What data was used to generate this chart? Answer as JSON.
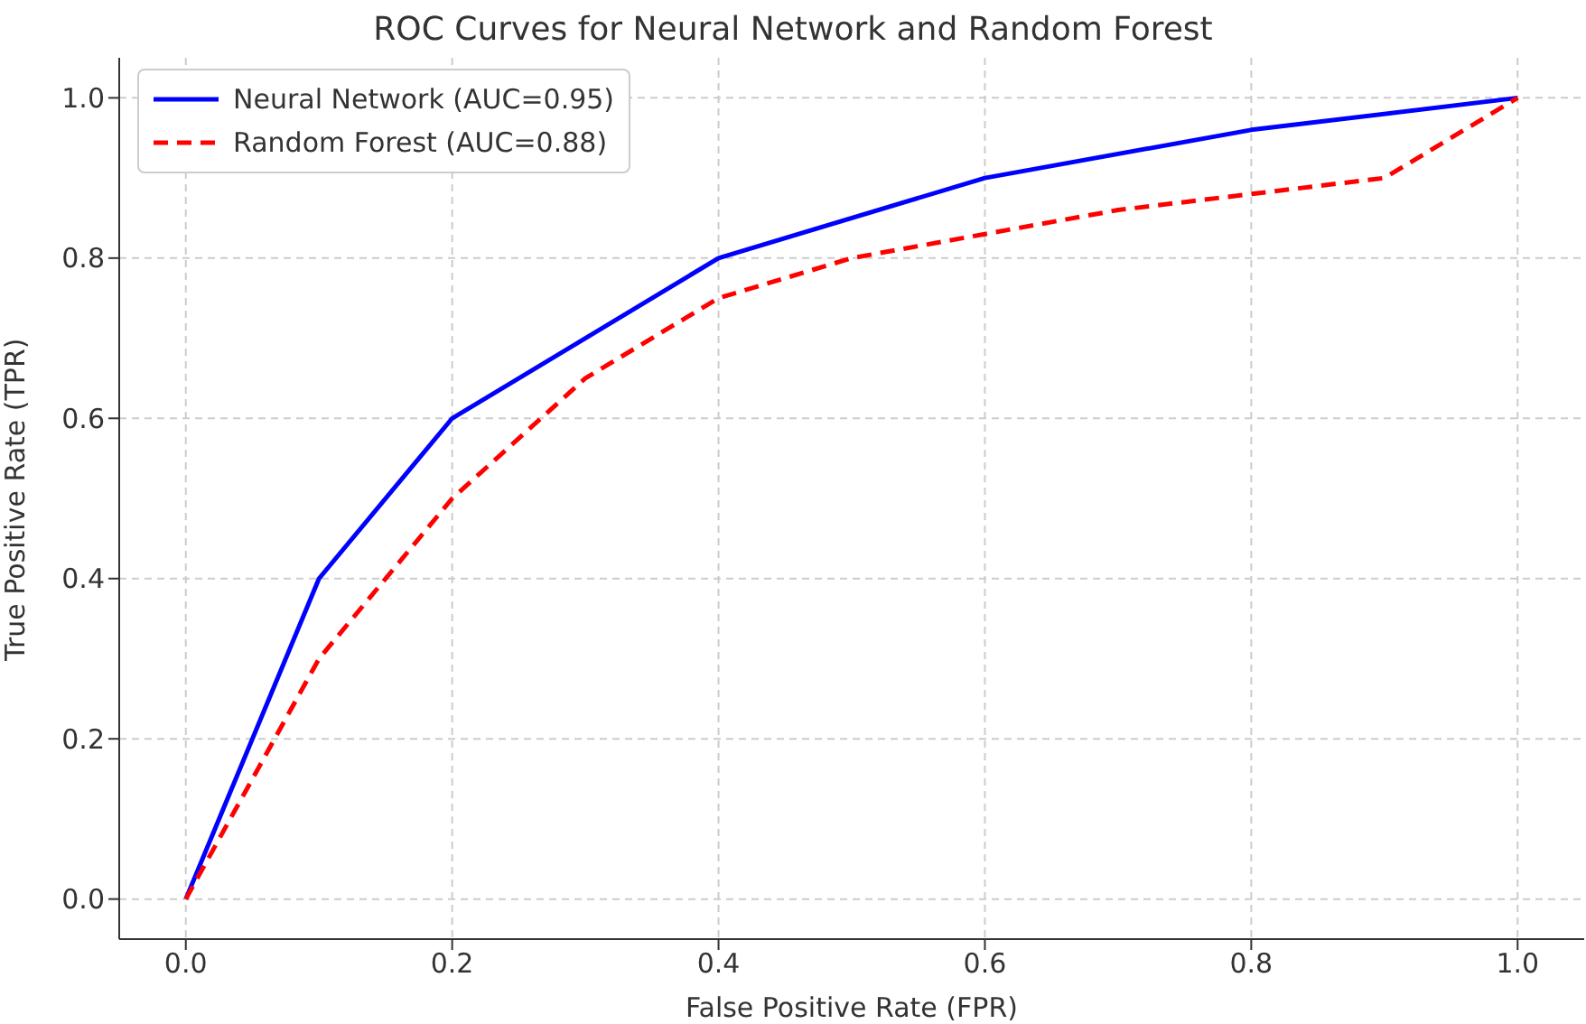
{
  "chart_data": {
    "type": "line",
    "title": "ROC Curves for Neural Network and Random Forest",
    "xlabel": "False Positive Rate (FPR)",
    "ylabel": "True Positive Rate (TPR)",
    "xlim": [
      -0.05,
      1.05
    ],
    "xticks": [
      {
        "value": 0,
        "label": "0.0"
      },
      {
        "value": 0.2,
        "label": "0.2"
      },
      {
        "value": 0.4,
        "label": "0.4"
      },
      {
        "value": 0.6,
        "label": "0.6"
      },
      {
        "value": 0.8,
        "label": "0.8"
      },
      {
        "value": 1,
        "label": "1.0"
      }
    ],
    "ylim": [
      -0.05,
      1.05
    ],
    "yticks": [
      {
        "value": 0,
        "label": "0.0"
      },
      {
        "value": 0.2,
        "label": "0.2"
      },
      {
        "value": 0.4,
        "label": "0.4"
      },
      {
        "value": 0.6,
        "label": "0.6"
      },
      {
        "value": 0.8,
        "label": "0.8"
      },
      {
        "value": 1,
        "label": "1.0"
      }
    ],
    "grid": true,
    "legend": "top left",
    "marker": "none",
    "series": [
      {
        "name": "Neural Network (AUC=0.95)",
        "color": "#0000ff",
        "line_style": "solid",
        "x": [
          0,
          0.1,
          0.2,
          0.4,
          0.6,
          0.8,
          1
        ],
        "values": [
          0,
          0.4,
          0.6,
          0.8,
          0.9,
          0.96,
          1
        ]
      },
      {
        "name": "Random Forest (AUC=0.88)",
        "color": "#ff0000",
        "line_style": "dashed",
        "x": [
          0,
          0.1,
          0.2,
          0.3,
          0.4,
          0.5,
          0.6,
          0.7,
          0.8,
          0.9,
          1
        ],
        "values": [
          0,
          0.3,
          0.5,
          0.65,
          0.75,
          0.8,
          0.83,
          0.86,
          0.88,
          0.9,
          1
        ]
      }
    ]
  }
}
